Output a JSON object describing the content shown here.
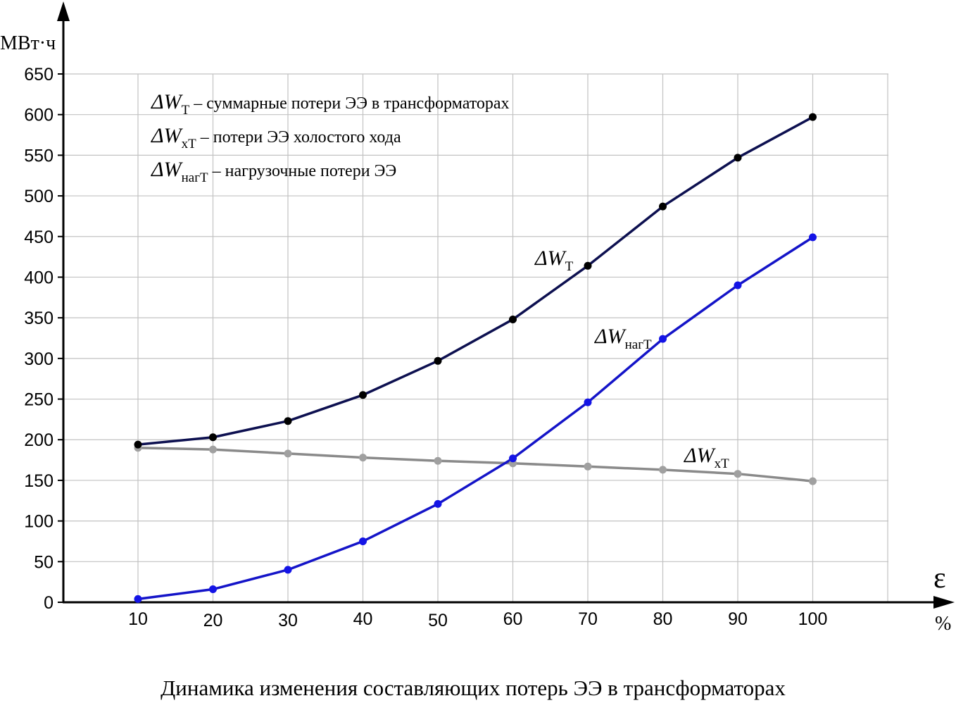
{
  "chart_data": {
    "type": "line",
    "title": "Динамика изменения составляющих потерь ЭЭ в трансформаторах",
    "ylabel": "МВт·ч",
    "xlabel_symbol": "ε",
    "xlabel_unit": "%",
    "x": [
      10,
      20,
      30,
      40,
      50,
      60,
      70,
      80,
      90,
      100
    ],
    "x_ticks": [
      "10",
      "20",
      "30",
      "40",
      "50",
      "60",
      "70",
      "80",
      "90",
      "100"
    ],
    "y_ticks": [
      "0",
      "50",
      "100",
      "150",
      "200",
      "250",
      "300",
      "350",
      "400",
      "450",
      "500",
      "550",
      "600",
      "650"
    ],
    "ylim": [
      0,
      650
    ],
    "grid": true,
    "series": [
      {
        "key": "total",
        "name": "ΔW_T",
        "symbol": "ΔW",
        "subscript": "T",
        "color": "#0d1050",
        "marker_color": "#000000",
        "values": [
          194,
          203,
          223,
          255,
          297,
          348,
          414,
          487,
          547,
          597
        ]
      },
      {
        "key": "idle",
        "name": "ΔW_xT",
        "symbol": "ΔW",
        "subscript": "xT",
        "color": "#8a8a8a",
        "marker_color": "#a0a0a0",
        "values": [
          190,
          188,
          183,
          178,
          174,
          171,
          167,
          163,
          158,
          149
        ]
      },
      {
        "key": "load",
        "name": "ΔW_нагT",
        "symbol": "ΔW",
        "subscript": "нагT",
        "color": "#1414c8",
        "marker_color": "#1414e6",
        "values": [
          4,
          16,
          40,
          75,
          121,
          177,
          246,
          324,
          390,
          449
        ]
      }
    ],
    "legend": {
      "placement": "top-left",
      "items": [
        {
          "symbol": "ΔW",
          "subscript": "T",
          "text": "– суммарные потери ЭЭ в трансформаторах"
        },
        {
          "symbol": "ΔW",
          "subscript": "xT",
          "text": "– потери ЭЭ холостого хода"
        },
        {
          "symbol": "ΔW",
          "subscript": "нагT",
          "text": "– нагрузочные потери ЭЭ"
        }
      ]
    }
  }
}
